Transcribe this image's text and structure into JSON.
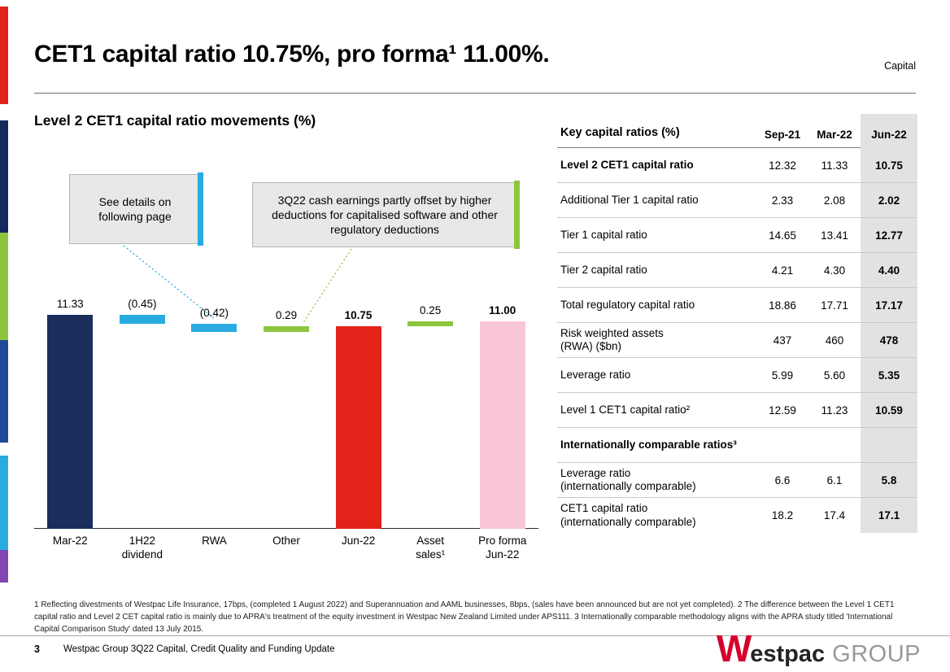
{
  "slide": {
    "title": "CET1 capital ratio 10.75%, pro forma¹ 11.00%.",
    "corner_label": "Capital",
    "chart_heading": "Level 2 CET1 capital ratio movements (%)"
  },
  "callouts": [
    {
      "text": "See details on following page",
      "accent": "#29abe2"
    },
    {
      "text": "3Q22 cash earnings partly offset by higher deductions for capitalised software and other regulatory deductions",
      "accent": "#8cc63f"
    }
  ],
  "chart_data": {
    "type": "bar",
    "subtype": "waterfall",
    "title": "Level 2 CET1 capital ratio movements (%)",
    "categories": [
      "Mar-22",
      "1H22\ndividend",
      "RWA",
      "Other",
      "Jun-22",
      "Asset\nsales¹",
      "Pro forma\nJun-22"
    ],
    "values": [
      11.33,
      -0.45,
      -0.42,
      0.29,
      10.75,
      0.25,
      11.0
    ],
    "labels": [
      "11.33",
      "(0.45)",
      "(0.42)",
      "0.29",
      "10.75",
      "0.25",
      "11.00"
    ],
    "label_bold": [
      false,
      false,
      false,
      false,
      true,
      false,
      true
    ],
    "bar_types": [
      "total",
      "delta",
      "delta",
      "delta",
      "total",
      "delta",
      "total"
    ],
    "colors": [
      "#1a2e5c",
      "#29abe2",
      "#29abe2",
      "#8cc63f",
      "#e2231a",
      "#8cc63f",
      "#f9c6d7"
    ],
    "ylim": [
      0,
      12.6
    ],
    "grid": false,
    "legend": false
  },
  "table": {
    "title": "Key capital ratios (%)",
    "columns": [
      "Sep-21",
      "Mar-22",
      "Jun-22"
    ],
    "rows": [
      {
        "label": "Level 2 CET1 capital ratio",
        "bold": true,
        "values": [
          "12.32",
          "11.33",
          "10.75"
        ]
      },
      {
        "label": "Additional Tier 1 capital ratio",
        "bold": false,
        "values": [
          "2.33",
          "2.08",
          "2.02"
        ]
      },
      {
        "label": "Tier 1 capital ratio",
        "bold": false,
        "values": [
          "14.65",
          "13.41",
          "12.77"
        ]
      },
      {
        "label": "Tier 2 capital ratio",
        "bold": false,
        "values": [
          "4.21",
          "4.30",
          "4.40"
        ]
      },
      {
        "label": "Total regulatory capital ratio",
        "bold": false,
        "values": [
          "18.86",
          "17.71",
          "17.17"
        ]
      },
      {
        "label": "Risk weighted assets\n(RWA) ($bn)",
        "bold": false,
        "values": [
          "437",
          "460",
          "478"
        ]
      },
      {
        "label": "Leverage ratio",
        "bold": false,
        "values": [
          "5.99",
          "5.60",
          "5.35"
        ]
      },
      {
        "label": "Level 1 CET1 capital ratio²",
        "bold": false,
        "values": [
          "12.59",
          "11.23",
          "10.59"
        ]
      },
      {
        "label": "Internationally comparable ratios³",
        "bold": true,
        "values": [
          "",
          "",
          ""
        ]
      },
      {
        "label": "Leverage ratio\n(internationally comparable)",
        "bold": false,
        "values": [
          "6.6",
          "6.1",
          "5.8"
        ]
      },
      {
        "label": "CET1 capital ratio\n(internationally comparable)",
        "bold": false,
        "values": [
          "18.2",
          "17.4",
          "17.1"
        ]
      }
    ]
  },
  "footnote": "1 Reflecting divestments of Westpac Life Insurance, 17bps, (completed 1 August 2022) and Superannuation and AAML businesses, 8bps, (sales have been announced but are not yet completed). 2 The difference between the Level 1 CET1 capital ratio and Level 2 CET capital ratio is mainly due to APRA's treatment of the equity investment in Westpac New Zealand Limited under APS111. 3 Internationally comparable methodology aligns with the APRA study titled 'International Capital Comparison Study' dated 13 July 2015.",
  "footer": {
    "page_number": "3",
    "text": "Westpac Group 3Q22 Capital, Credit Quality and Funding Update",
    "logo": {
      "w": "W",
      "estpac": "estpac",
      "group": "GROUP"
    }
  },
  "brand_colors": {
    "stripe": [
      "#e2231a",
      "#16295c",
      "#8cc63f",
      "#1f4796",
      "#29abe2",
      "#8246af"
    ],
    "navy": "#1a2e5c",
    "cyan": "#29abe2",
    "green": "#8cc63f",
    "red": "#e2231a",
    "pink": "#f9c6d7",
    "table_shade": "#e2e2e2"
  }
}
